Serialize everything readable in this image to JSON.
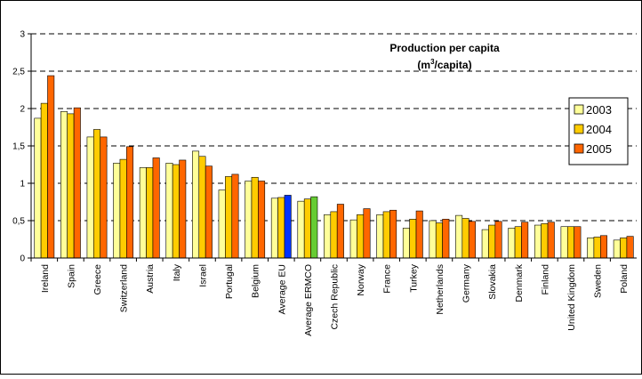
{
  "chart_data": {
    "type": "bar",
    "title": "Production per capita",
    "subtitle_prefix": "(m",
    "subtitle_sup": "3",
    "subtitle_suffix": "/capita)",
    "xlabel": "",
    "ylabel": "",
    "ylim": [
      0,
      3
    ],
    "yticks": [
      "0",
      "0,5",
      "1",
      "1,5",
      "2",
      "2,5",
      "3"
    ],
    "grid": true,
    "legend_position": "right",
    "categories": [
      "Ireland",
      "Spain",
      "Greece",
      "Switzerland",
      "Austria",
      "Italy",
      "Israel",
      "Portugal",
      "Belgium",
      "Average EU",
      "Average ERMCO",
      "Czech Republic",
      "Norway",
      "France",
      "Turkey",
      "Netherlands",
      "Germany",
      "Slovakia",
      "Denmark",
      "Finland",
      "United Kingdom",
      "Sweden",
      "Poland"
    ],
    "series": [
      {
        "name": "2003",
        "color": "#FFFF99",
        "values": [
          1.87,
          1.96,
          1.62,
          1.27,
          1.21,
          1.27,
          1.43,
          0.91,
          1.03,
          0.8,
          0.76,
          0.58,
          0.51,
          0.58,
          0.4,
          0.5,
          0.57,
          0.38,
          0.4,
          0.44,
          0.42,
          0.27,
          0.24
        ]
      },
      {
        "name": "2004",
        "color": "#FFCC00",
        "values": [
          2.07,
          1.93,
          1.72,
          1.32,
          1.21,
          1.25,
          1.36,
          1.09,
          1.08,
          0.81,
          0.79,
          0.62,
          0.58,
          0.62,
          0.52,
          0.47,
          0.53,
          0.44,
          0.42,
          0.46,
          0.42,
          0.28,
          0.27
        ]
      },
      {
        "name": "2005",
        "color": "#FF6600",
        "values": [
          2.44,
          2.01,
          1.62,
          1.49,
          1.34,
          1.31,
          1.23,
          1.12,
          1.03,
          0.84,
          0.82,
          0.72,
          0.66,
          0.64,
          0.63,
          0.52,
          0.49,
          0.49,
          0.48,
          0.48,
          0.42,
          0.3,
          0.29
        ]
      }
    ],
    "highlight_colors": {
      "Average EU": "#0033FF",
      "Average ERMCO": "#66CC33"
    },
    "colors": {
      "border": "#000000",
      "gridline": "#000000",
      "background": "#FFFFFF"
    }
  }
}
